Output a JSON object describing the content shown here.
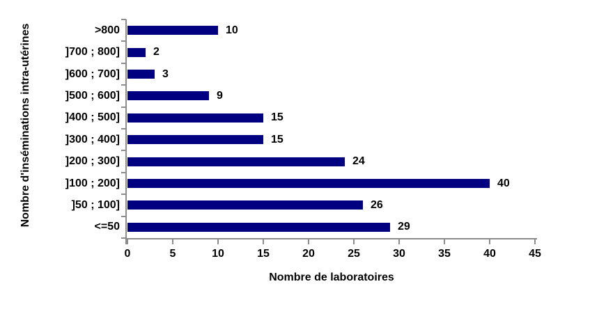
{
  "chart_data": {
    "type": "bar",
    "orientation": "horizontal",
    "title": "",
    "categories": [
      ">800",
      "]700 ; 800]",
      "]600 ; 700]",
      "]500 ; 600]",
      "]400 ; 500]",
      "]300 ; 400]",
      "]200 ; 300]",
      "]100 ; 200]",
      "]50 ; 100]",
      "<=50"
    ],
    "values": [
      10,
      2,
      3,
      9,
      15,
      15,
      24,
      40,
      26,
      29
    ],
    "xlabel": "Nombre de laboratoires",
    "ylabel": "Nombre d'inséminations intra-utérines",
    "xlim": [
      0,
      45
    ],
    "xticks": [
      0,
      5,
      10,
      15,
      20,
      25,
      30,
      35,
      40,
      45
    ],
    "grid": false,
    "legend": "none",
    "show_data_labels": true,
    "colors": {
      "bar": "#000080",
      "axis": "#8c8c8c",
      "text": "#000000",
      "background": "#ffffff"
    }
  }
}
